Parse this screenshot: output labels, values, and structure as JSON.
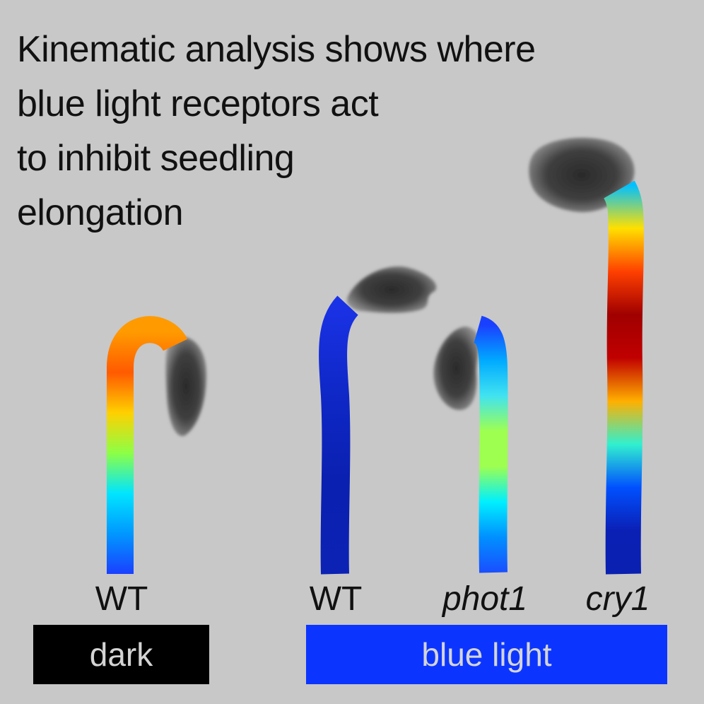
{
  "title_lines": [
    "Kinematic analysis shows where",
    "blue light receptors act",
    "to inhibit seedling",
    "elongation"
  ],
  "seedlings": [
    {
      "label": "WT",
      "condition": "dark",
      "stops": [
        "#ff9a00",
        "#ff5a00",
        "#ffd000",
        "#8dff45",
        "#00e5ff",
        "#0098ff",
        "#1a40ff"
      ]
    },
    {
      "label": "WT",
      "condition": "blue light",
      "stops": [
        "#1b33e8",
        "#0f28c8",
        "#0a20b0",
        "#0b22b5"
      ]
    },
    {
      "label": "phot1",
      "condition": "blue light",
      "italic": true,
      "stops": [
        "#1a40ff",
        "#00aaff",
        "#41e3f0",
        "#9eff50",
        "#9eff50",
        "#00f0ff",
        "#0090ff",
        "#1a4fff"
      ]
    },
    {
      "label": "cry1",
      "condition": "blue light",
      "italic": true,
      "stops": [
        "#00c0ff",
        "#ffe000",
        "#ff4000",
        "#a00000",
        "#c00000",
        "#ffb000",
        "#30f0d0",
        "#0050ff",
        "#0a20b5",
        "#0a20b0"
      ]
    }
  ],
  "conditions": {
    "dark": "dark",
    "blue_light": "blue light"
  },
  "colors": {
    "background": "#c8c8c8",
    "dark_bar": "#000000",
    "blue_bar": "#0b35ff",
    "bar_text": "#d4d4d4",
    "cotyledon": "#4a4a4a"
  }
}
